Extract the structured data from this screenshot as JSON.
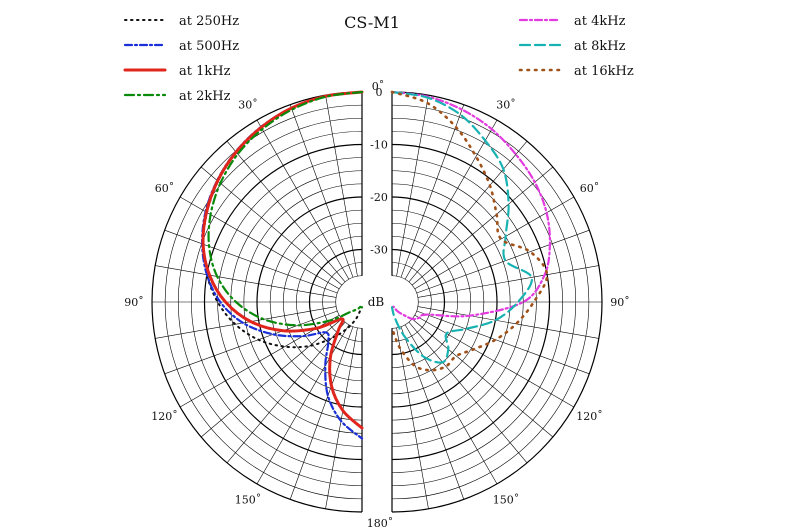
{
  "chart_data": {
    "type": "polar",
    "title": "CS-M1",
    "unit_label": "dB",
    "radial_ticks": [
      {
        "label": "0",
        "value": 0
      },
      {
        "label": "-10",
        "value": -10
      },
      {
        "label": "-20",
        "value": -20
      },
      {
        "label": "-30",
        "value": -30
      }
    ],
    "radial_range": [
      -40,
      0
    ],
    "angle_ticks": [
      {
        "label": "0˚",
        "value": 0
      },
      {
        "label": "30˚",
        "value": 30
      },
      {
        "label": "60˚",
        "value": 60
      },
      {
        "label": "90˚",
        "value": 90
      },
      {
        "label": "120˚",
        "value": 120
      },
      {
        "label": "150˚",
        "value": 150
      },
      {
        "label": "180˚",
        "value": 180
      }
    ],
    "legend_left": [
      "at 250Hz",
      "at 500Hz",
      "at 1kHz",
      "at 2kHz"
    ],
    "legend_right": [
      "at 4kHz",
      "at 8kHz",
      "at 16kHz"
    ],
    "series": [
      {
        "name": "at 250Hz",
        "half": "left",
        "color": "#111111",
        "dash": "1.5,4.5",
        "width": 2,
        "angles": [
          0,
          10,
          20,
          30,
          40,
          50,
          60,
          70,
          80,
          90,
          100,
          110,
          120,
          130,
          140,
          150,
          160,
          170,
          180
        ],
        "values": [
          0,
          -0.2,
          -0.8,
          -1.7,
          -2.8,
          -4.2,
          -5.9,
          -7.8,
          -10,
          -12.5,
          -15.5,
          -19,
          -23,
          -27,
          -31,
          -34,
          -36.5,
          -38.5,
          -39
        ]
      },
      {
        "name": "at 500Hz",
        "half": "left",
        "color": "#1a2fd6",
        "dash": "7,3,2,3",
        "width": 2.2,
        "angles": [
          0,
          10,
          20,
          30,
          40,
          50,
          60,
          70,
          80,
          90,
          100,
          110,
          120,
          130,
          140,
          150,
          160,
          170,
          180
        ],
        "values": [
          0,
          -0.2,
          -0.7,
          -1.5,
          -2.6,
          -4,
          -5.6,
          -7.6,
          -10,
          -13,
          -17,
          -22,
          -27,
          -31,
          -30,
          -26,
          -21,
          -17,
          -14
        ]
      },
      {
        "name": "at 1kHz",
        "half": "left",
        "color": "#e0261c",
        "dash": "",
        "width": 3,
        "angles": [
          0,
          10,
          20,
          30,
          40,
          50,
          60,
          70,
          80,
          90,
          100,
          110,
          120,
          130,
          140,
          150,
          160,
          170,
          180
        ],
        "values": [
          0,
          -0.2,
          -0.7,
          -1.6,
          -2.7,
          -4.1,
          -5.8,
          -7.8,
          -10.5,
          -14,
          -18.5,
          -24,
          -30,
          -35,
          -33,
          -28,
          -23,
          -19,
          -16
        ]
      },
      {
        "name": "at 2kHz",
        "half": "left",
        "color": "#0a8a0a",
        "dash": "9,4,2,4",
        "width": 2.2,
        "angles": [
          0,
          10,
          20,
          30,
          40,
          50,
          60,
          70,
          80,
          90,
          100,
          110,
          120,
          130,
          140,
          150,
          160,
          170,
          180
        ],
        "values": [
          0,
          -0.3,
          -1,
          -2,
          -3.2,
          -4.8,
          -6.7,
          -9,
          -12,
          -16,
          -21,
          -27,
          -33,
          -37,
          -38,
          -38.5,
          -39,
          -39,
          -39
        ]
      },
      {
        "name": "at 4kHz",
        "half": "right",
        "color": "#e23be0",
        "dash": "7,3,2,3",
        "width": 2.2,
        "angles": [
          0,
          10,
          20,
          30,
          40,
          50,
          60,
          70,
          80,
          90,
          100,
          110,
          120,
          130,
          140,
          150,
          160,
          170,
          180
        ],
        "values": [
          0,
          -0.3,
          -1,
          -2,
          -3.3,
          -4.5,
          -6,
          -8,
          -10.5,
          -15,
          -25,
          -33,
          -34,
          -35,
          -37,
          -38,
          -39,
          -39,
          -39
        ]
      },
      {
        "name": "at 8kHz",
        "half": "right",
        "color": "#19b2b2",
        "dash": "10,5",
        "width": 2.2,
        "angles": [
          0,
          10,
          20,
          30,
          40,
          50,
          60,
          70,
          80,
          90,
          100,
          110,
          120,
          130,
          140,
          150,
          160,
          170,
          180
        ],
        "values": [
          0,
          -0.5,
          -2,
          -4.5,
          -7,
          -11,
          -15,
          -17,
          -13,
          -16,
          -20,
          -25,
          -28,
          -26,
          -25,
          -28,
          -33,
          -37,
          -39
        ]
      },
      {
        "name": "at 16kHz",
        "half": "right",
        "color": "#a0521a",
        "dash": "1.5,6",
        "width": 2.6,
        "angles": [
          0,
          10,
          20,
          30,
          40,
          50,
          60,
          70,
          80,
          90,
          100,
          110,
          120,
          130,
          140,
          150,
          160,
          170,
          180
        ],
        "values": [
          0,
          -1.5,
          -4.5,
          -8,
          -11,
          -14,
          -16,
          -12,
          -10,
          -13,
          -16,
          -19,
          -22,
          -24,
          -24,
          -25,
          -27,
          -31,
          -35
        ]
      }
    ]
  }
}
